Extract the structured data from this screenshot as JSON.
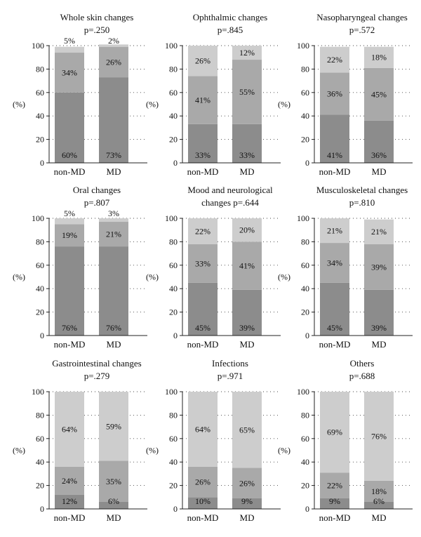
{
  "chart_data": [
    {
      "type": "bar",
      "title": [
        "Whole skin changes",
        "p=.250"
      ],
      "categories": [
        "non-MD",
        "MD"
      ],
      "ylabel": "(%)",
      "ylim": [
        0,
        100
      ],
      "yticks": [
        "0",
        "20",
        "40",
        "60",
        "80",
        "100"
      ],
      "series": [
        {
          "values": [
            60,
            73
          ],
          "labels": [
            "60%",
            "73%"
          ]
        },
        {
          "values": [
            34,
            26
          ],
          "labels": [
            "34%",
            "26%"
          ]
        },
        {
          "values": [
            5,
            2
          ],
          "labels": [
            "5%",
            "2%"
          ]
        }
      ]
    },
    {
      "type": "bar",
      "title": [
        "Ophthalmic changes",
        "p=.845"
      ],
      "categories": [
        "non-MD",
        "MD"
      ],
      "ylabel": "(%)",
      "ylim": [
        0,
        100
      ],
      "yticks": [
        "0",
        "20",
        "40",
        "60",
        "80",
        "100"
      ],
      "series": [
        {
          "values": [
            33,
            33
          ],
          "labels": [
            "33%",
            "33%"
          ]
        },
        {
          "values": [
            41,
            55
          ],
          "labels": [
            "41%",
            "55%"
          ]
        },
        {
          "values": [
            26,
            12
          ],
          "labels": [
            "26%",
            "12%"
          ]
        }
      ]
    },
    {
      "type": "bar",
      "title": [
        "Nasopharyngeal changes",
        "p=.572"
      ],
      "categories": [
        "non-MD",
        "MD"
      ],
      "ylabel": "(%)",
      "ylim": [
        0,
        100
      ],
      "yticks": [
        "0",
        "20",
        "40",
        "60",
        "80",
        "100"
      ],
      "series": [
        {
          "values": [
            41,
            36
          ],
          "labels": [
            "41%",
            "36%"
          ]
        },
        {
          "values": [
            36,
            45
          ],
          "labels": [
            "36%",
            "45%"
          ]
        },
        {
          "values": [
            22,
            18
          ],
          "labels": [
            "22%",
            "18%"
          ]
        }
      ]
    },
    {
      "type": "bar",
      "title": [
        "Oral changes",
        "p=.807"
      ],
      "categories": [
        "non-MD",
        "MD"
      ],
      "ylabel": "(%)",
      "ylim": [
        0,
        100
      ],
      "yticks": [
        "0",
        "20",
        "40",
        "60",
        "80",
        "100"
      ],
      "series": [
        {
          "values": [
            76,
            76
          ],
          "labels": [
            "76%",
            "76%"
          ]
        },
        {
          "values": [
            19,
            21
          ],
          "labels": [
            "19%",
            "21%"
          ]
        },
        {
          "values": [
            5,
            3
          ],
          "labels": [
            "5%",
            "3%"
          ]
        }
      ]
    },
    {
      "type": "bar",
      "title": [
        "Mood and neurological",
        "changes p=.644"
      ],
      "categories": [
        "non-MD",
        "MD"
      ],
      "ylabel": "(%)",
      "ylim": [
        0,
        100
      ],
      "yticks": [
        "0",
        "20",
        "40",
        "60",
        "80",
        "100"
      ],
      "series": [
        {
          "values": [
            45,
            39
          ],
          "labels": [
            "45%",
            "39%"
          ]
        },
        {
          "values": [
            33,
            41
          ],
          "labels": [
            "33%",
            "41%"
          ]
        },
        {
          "values": [
            22,
            20
          ],
          "labels": [
            "22%",
            "20%"
          ]
        }
      ]
    },
    {
      "type": "bar",
      "title": [
        "Musculoskeletal changes",
        "p=.810"
      ],
      "categories": [
        "non-MD",
        "MD"
      ],
      "ylabel": "(%)",
      "ylim": [
        0,
        100
      ],
      "yticks": [
        "0",
        "20",
        "40",
        "60",
        "80",
        "100"
      ],
      "series": [
        {
          "values": [
            45,
            39
          ],
          "labels": [
            "45%",
            "39%"
          ]
        },
        {
          "values": [
            34,
            39
          ],
          "labels": [
            "34%",
            "39%"
          ]
        },
        {
          "values": [
            21,
            21
          ],
          "labels": [
            "21%",
            "21%"
          ]
        }
      ]
    },
    {
      "type": "bar",
      "title": [
        "Gastrointestinal changes",
        "p=.279"
      ],
      "categories": [
        "non-MD",
        "MD"
      ],
      "ylabel": "(%)",
      "ylim": [
        0,
        100
      ],
      "yticks": [
        "0",
        "20",
        "40",
        "60",
        "80",
        "100"
      ],
      "series": [
        {
          "values": [
            12,
            6
          ],
          "labels": [
            "12%",
            "6%"
          ]
        },
        {
          "values": [
            24,
            35
          ],
          "labels": [
            "24%",
            "35%"
          ]
        },
        {
          "values": [
            64,
            59
          ],
          "labels": [
            "64%",
            "59%"
          ]
        }
      ]
    },
    {
      "type": "bar",
      "title": [
        "Infections",
        "p=.971"
      ],
      "categories": [
        "non-MD",
        "MD"
      ],
      "ylabel": "(%)",
      "ylim": [
        0,
        100
      ],
      "yticks": [
        "0",
        "20",
        "40",
        "60",
        "80",
        "100"
      ],
      "series": [
        {
          "values": [
            10,
            9
          ],
          "labels": [
            "10%",
            "9%"
          ]
        },
        {
          "values": [
            26,
            26
          ],
          "labels": [
            "26%",
            "26%"
          ]
        },
        {
          "values": [
            64,
            65
          ],
          "labels": [
            "64%",
            "65%"
          ]
        }
      ]
    },
    {
      "type": "bar",
      "title": [
        "Others",
        "p=.688"
      ],
      "categories": [
        "non-MD",
        "MD"
      ],
      "ylabel": "(%)",
      "ylim": [
        0,
        100
      ],
      "yticks": [
        "0",
        "20",
        "40",
        "60",
        "80",
        "100"
      ],
      "series": [
        {
          "values": [
            9,
            6
          ],
          "labels": [
            "9%",
            "6%"
          ]
        },
        {
          "values": [
            22,
            18
          ],
          "labels": [
            "22%",
            "18%"
          ]
        },
        {
          "values": [
            69,
            76
          ],
          "labels": [
            "69%",
            "76%"
          ]
        }
      ]
    }
  ],
  "colors": {
    "segment_bottom": "#8c8c8c",
    "segment_middle": "#a9a9a9",
    "segment_top": "#cdcdcd",
    "axis": "#222222",
    "gridline": "#444444"
  }
}
